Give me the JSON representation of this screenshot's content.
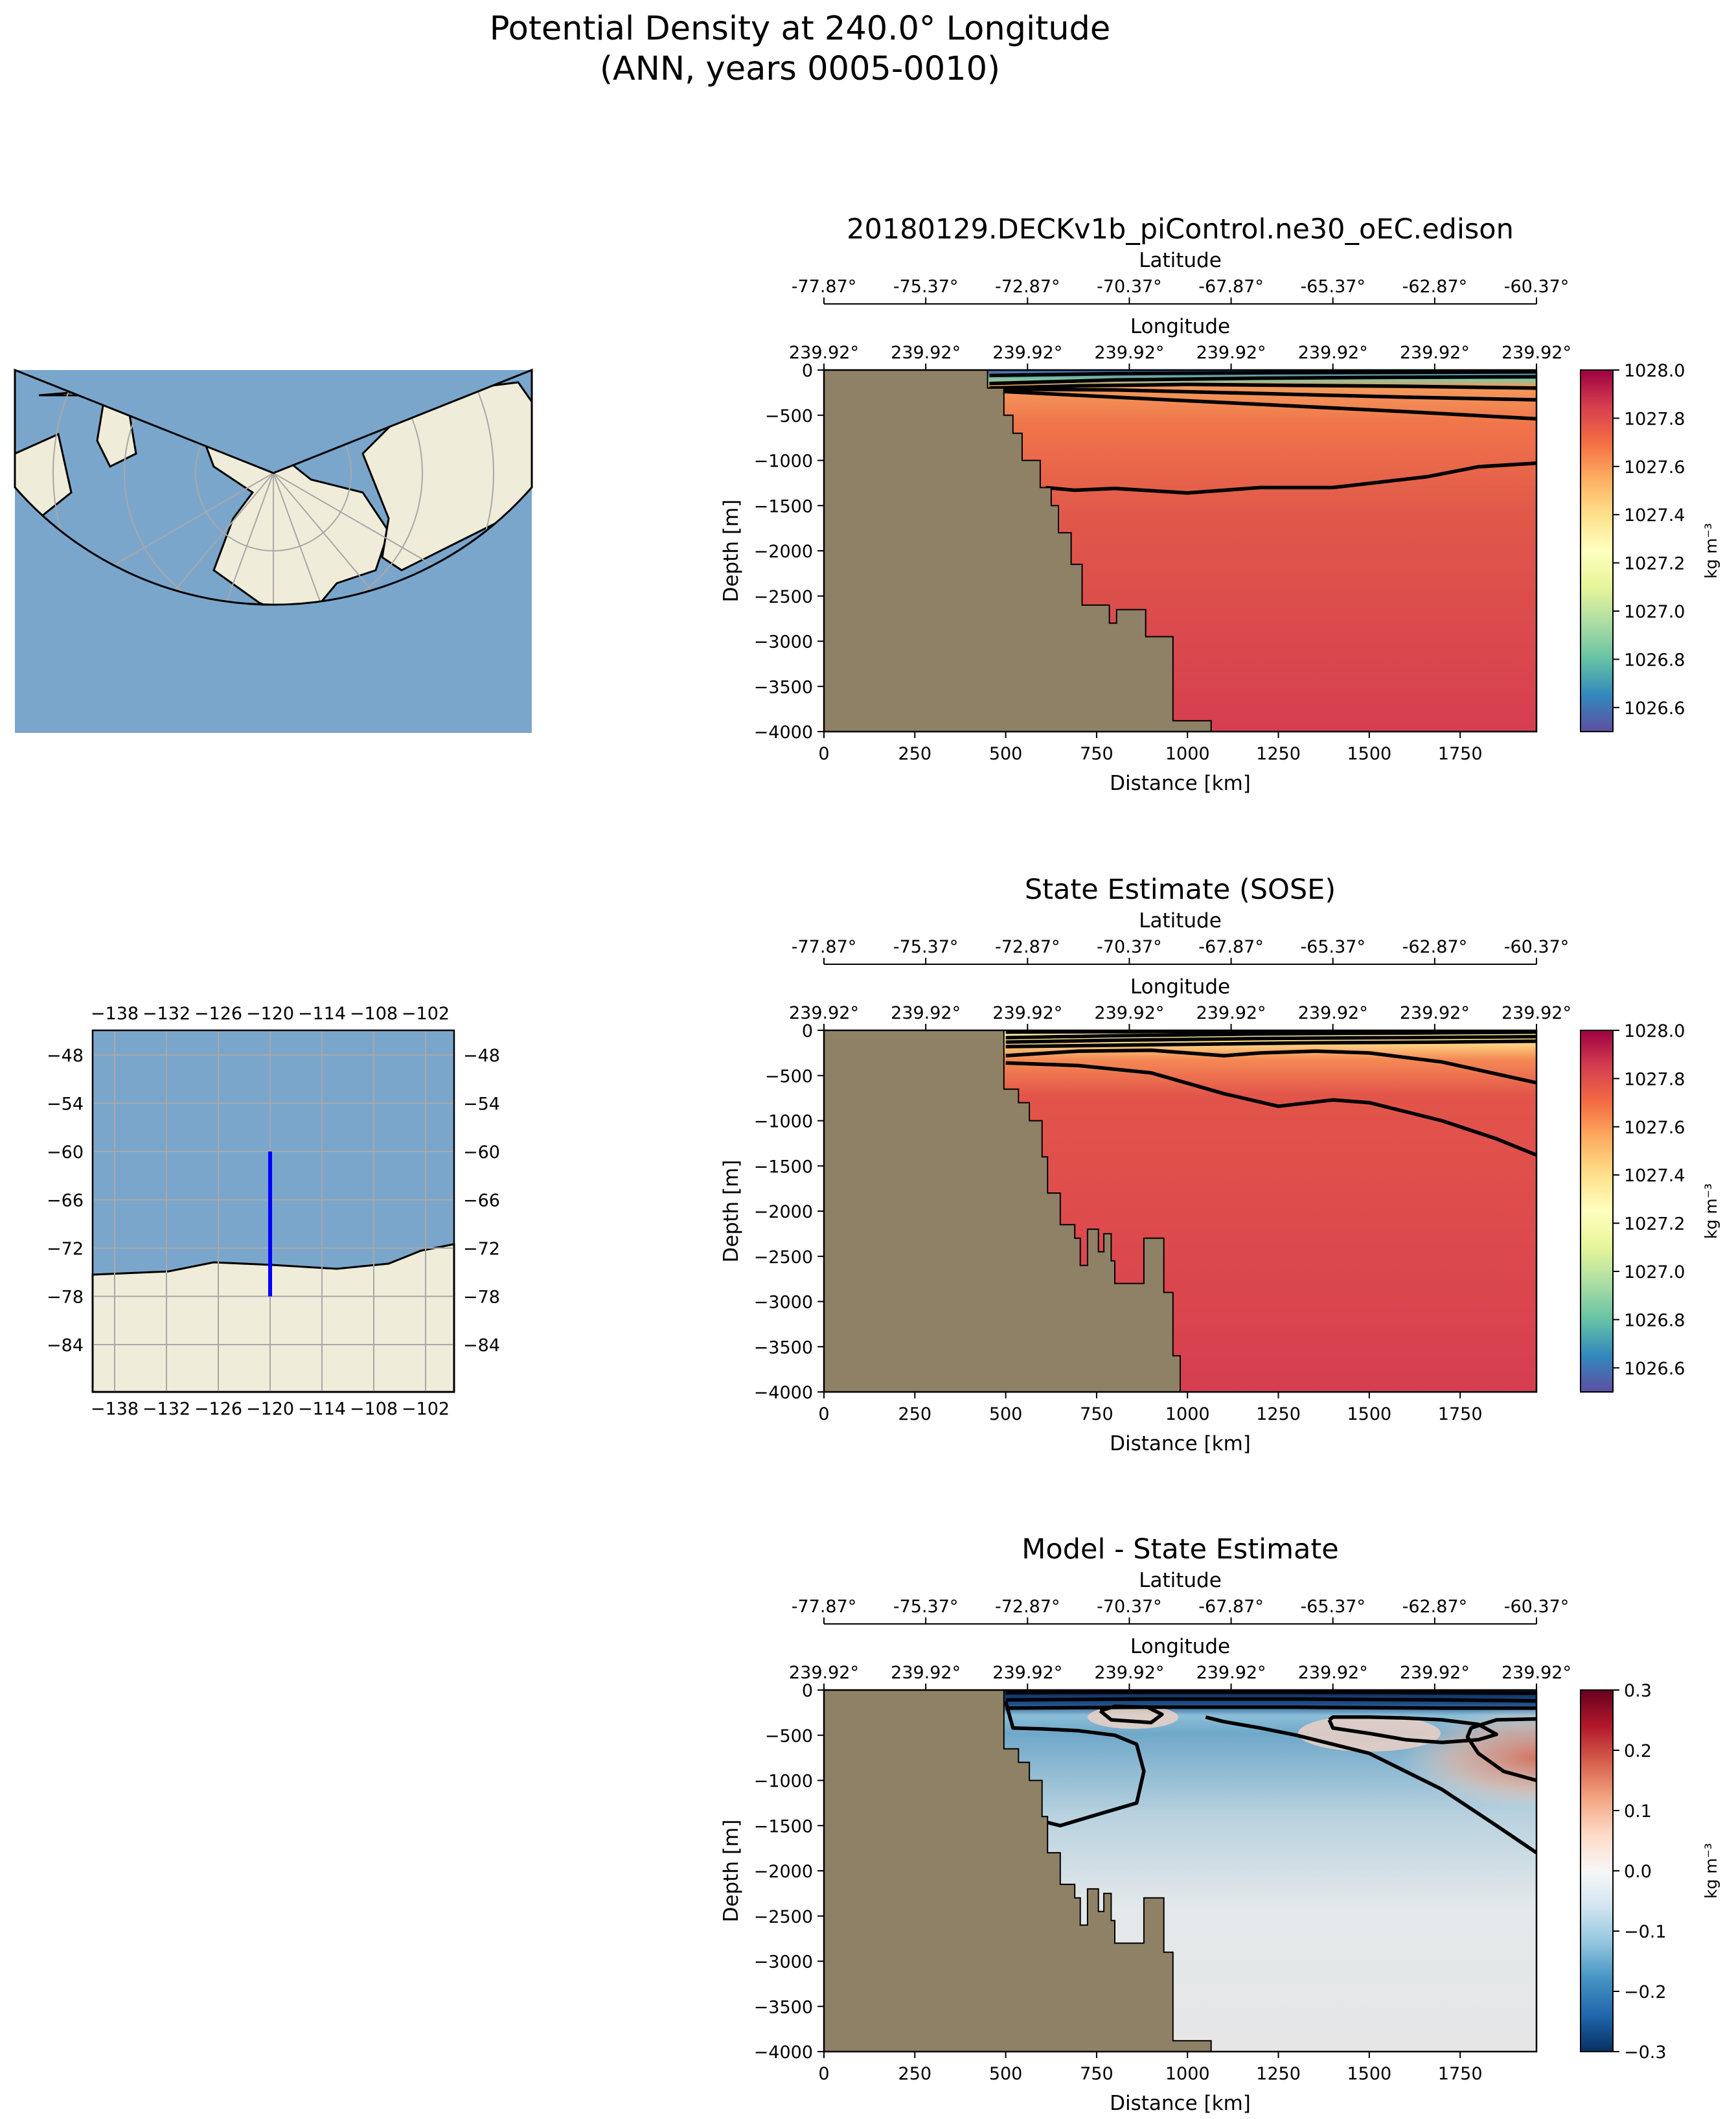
{
  "figure": {
    "title_line1": "Potential Density at 240.0° Longitude",
    "title_line2": "(ANN, years 0005-0010)"
  },
  "colors": {
    "land": "#8f8166",
    "ocean_blue": "#7aa6cc",
    "map_land": "#efedd9",
    "transect": "#0000ff"
  },
  "chart_data": [
    {
      "type": "heatmap",
      "title": "20180129.DECKv1b_piControl.ne30_oEC.edison",
      "xlabel": "Distance [km]",
      "ylabel": "Depth [m]",
      "x_ticks": [
        0,
        250,
        500,
        750,
        1000,
        1250,
        1500,
        1750
      ],
      "y_ticks": [
        0,
        -500,
        -1000,
        -1500,
        -2000,
        -2500,
        -3000,
        -3500,
        -4000
      ],
      "xlim": [
        0,
        1960
      ],
      "ylim": [
        -4000,
        0
      ],
      "top_axis1_label": "Latitude",
      "top_axis1_ticks": [
        "-77.87°",
        "-75.37°",
        "-72.87°",
        "-70.37°",
        "-67.87°",
        "-65.37°",
        "-62.87°",
        "-60.37°"
      ],
      "top_axis2_label": "Longitude",
      "top_axis2_ticks": [
        "239.92°",
        "239.92°",
        "239.92°",
        "239.92°",
        "239.92°",
        "239.92°",
        "239.92°",
        "239.92°"
      ],
      "colorbar_label": "kg m⁻³",
      "colorbar_ticks": [
        "1026.6",
        "1026.8",
        "1027.0",
        "1027.2",
        "1027.4",
        "1027.6",
        "1027.8",
        "1028.0"
      ],
      "colorbar_range": [
        1026.5,
        1028.0
      ],
      "colormap": "Spectral_r",
      "land_boundary": [
        [
          0,
          -4000
        ],
        [
          0,
          0
        ],
        [
          450,
          0
        ],
        [
          450,
          -200
        ],
        [
          495,
          -200
        ],
        [
          495,
          -500
        ],
        [
          520,
          -500
        ],
        [
          520,
          -700
        ],
        [
          545,
          -700
        ],
        [
          545,
          -1000
        ],
        [
          595,
          -1000
        ],
        [
          595,
          -1300
        ],
        [
          625,
          -1300
        ],
        [
          625,
          -1500
        ],
        [
          645,
          -1500
        ],
        [
          645,
          -1800
        ],
        [
          680,
          -1800
        ],
        [
          680,
          -2150
        ],
        [
          710,
          -2150
        ],
        [
          710,
          -2600
        ],
        [
          785,
          -2600
        ],
        [
          785,
          -2800
        ],
        [
          805,
          -2800
        ],
        [
          805,
          -2650
        ],
        [
          885,
          -2650
        ],
        [
          885,
          -2950
        ],
        [
          960,
          -2950
        ],
        [
          960,
          -3880
        ],
        [
          1065,
          -3880
        ],
        [
          1065,
          -4000
        ]
      ],
      "contours": [
        {
          "x": [
            455,
            800,
            1200,
            1600,
            1960
          ],
          "y": [
            -60,
            -40,
            -30,
            -25,
            -20
          ]
        },
        {
          "x": [
            455,
            800,
            1200,
            1600,
            1960
          ],
          "y": [
            -150,
            -110,
            -90,
            -80,
            -75
          ]
        },
        {
          "x": [
            455,
            700,
            1000,
            1300,
            1600,
            1960
          ],
          "y": [
            -200,
            -175,
            -160,
            -170,
            -180,
            -200
          ]
        },
        {
          "x": [
            455,
            800,
            1200,
            1600,
            1960
          ],
          "y": [
            -210,
            -220,
            -260,
            -300,
            -330
          ]
        },
        {
          "x": [
            455,
            800,
            1200,
            1600,
            1960
          ],
          "y": [
            -230,
            -300,
            -380,
            -460,
            -540
          ]
        },
        {
          "x": [
            610,
            690,
            800,
            1000,
            1200,
            1400,
            1660,
            1800,
            1960
          ],
          "y": [
            -1300,
            -1330,
            -1310,
            -1360,
            -1300,
            -1300,
            -1180,
            -1070,
            -1030
          ]
        }
      ]
    },
    {
      "type": "heatmap",
      "title": "State Estimate (SOSE)",
      "xlabel": "Distance [km]",
      "ylabel": "Depth [m]",
      "x_ticks": [
        0,
        250,
        500,
        750,
        1000,
        1250,
        1500,
        1750
      ],
      "y_ticks": [
        0,
        -500,
        -1000,
        -1500,
        -2000,
        -2500,
        -3000,
        -3500,
        -4000
      ],
      "xlim": [
        0,
        1960
      ],
      "ylim": [
        -4000,
        0
      ],
      "top_axis1_label": "Latitude",
      "top_axis1_ticks": [
        "-77.87°",
        "-75.37°",
        "-72.87°",
        "-70.37°",
        "-67.87°",
        "-65.37°",
        "-62.87°",
        "-60.37°"
      ],
      "top_axis2_label": "Longitude",
      "top_axis2_ticks": [
        "239.92°",
        "239.92°",
        "239.92°",
        "239.92°",
        "239.92°",
        "239.92°",
        "239.92°",
        "239.92°"
      ],
      "colorbar_label": "kg m⁻³",
      "colorbar_ticks": [
        "1026.6",
        "1026.8",
        "1027.0",
        "1027.2",
        "1027.4",
        "1027.6",
        "1027.8",
        "1028.0"
      ],
      "colorbar_range": [
        1026.5,
        1028.0
      ],
      "colormap": "Spectral_r",
      "land_boundary": [
        [
          0,
          -4000
        ],
        [
          0,
          0
        ],
        [
          495,
          0
        ],
        [
          495,
          -650
        ],
        [
          535,
          -650
        ],
        [
          535,
          -800
        ],
        [
          565,
          -800
        ],
        [
          565,
          -1000
        ],
        [
          600,
          -1000
        ],
        [
          600,
          -1400
        ],
        [
          615,
          -1400
        ],
        [
          615,
          -1800
        ],
        [
          650,
          -1800
        ],
        [
          650,
          -2150
        ],
        [
          690,
          -2150
        ],
        [
          690,
          -2300
        ],
        [
          705,
          -2300
        ],
        [
          705,
          -2600
        ],
        [
          725,
          -2600
        ],
        [
          725,
          -2200
        ],
        [
          755,
          -2200
        ],
        [
          755,
          -2450
        ],
        [
          770,
          -2450
        ],
        [
          770,
          -2250
        ],
        [
          790,
          -2250
        ],
        [
          790,
          -2550
        ],
        [
          800,
          -2550
        ],
        [
          800,
          -2800
        ],
        [
          880,
          -2800
        ],
        [
          880,
          -2300
        ],
        [
          935,
          -2300
        ],
        [
          935,
          -2900
        ],
        [
          960,
          -2900
        ],
        [
          960,
          -3600
        ],
        [
          980,
          -3600
        ],
        [
          980,
          -4000
        ]
      ],
      "contours": [
        {
          "x": [
            500,
            800,
            1200,
            1600,
            1960
          ],
          "y": [
            -20,
            -15,
            -10,
            -5,
            -5
          ]
        },
        {
          "x": [
            500,
            800,
            1200,
            1600,
            1960
          ],
          "y": [
            -80,
            -60,
            -40,
            -30,
            -20
          ]
        },
        {
          "x": [
            500,
            800,
            1200,
            1600,
            1960
          ],
          "y": [
            -130,
            -110,
            -90,
            -80,
            -70
          ]
        },
        {
          "x": [
            500,
            900,
            1300,
            1700,
            1960
          ],
          "y": [
            -180,
            -160,
            -140,
            -130,
            -120
          ]
        },
        {
          "x": [
            500,
            700,
            900,
            1100,
            1200,
            1350,
            1500,
            1700,
            1960
          ],
          "y": [
            -280,
            -230,
            -220,
            -280,
            -250,
            -230,
            -250,
            -350,
            -580
          ]
        },
        {
          "x": [
            500,
            700,
            900,
            1100,
            1250,
            1400,
            1500,
            1700,
            1850,
            1960
          ],
          "y": [
            -360,
            -390,
            -470,
            -700,
            -840,
            -770,
            -800,
            -1000,
            -1200,
            -1380
          ]
        }
      ]
    },
    {
      "type": "heatmap",
      "title": "Model - State Estimate",
      "xlabel": "Distance [km]",
      "ylabel": "Depth [m]",
      "x_ticks": [
        0,
        250,
        500,
        750,
        1000,
        1250,
        1500,
        1750
      ],
      "y_ticks": [
        0,
        -500,
        -1000,
        -1500,
        -2000,
        -2500,
        -3000,
        -3500,
        -4000
      ],
      "xlim": [
        0,
        1960
      ],
      "ylim": [
        -4000,
        0
      ],
      "top_axis1_label": "Latitude",
      "top_axis1_ticks": [
        "-77.87°",
        "-75.37°",
        "-72.87°",
        "-70.37°",
        "-67.87°",
        "-65.37°",
        "-62.87°",
        "-60.37°"
      ],
      "top_axis2_label": "Longitude",
      "top_axis2_ticks": [
        "239.92°",
        "239.92°",
        "239.92°",
        "239.92°",
        "239.92°",
        "239.92°",
        "239.92°",
        "239.92°"
      ],
      "colorbar_label": "kg m⁻³",
      "colorbar_ticks": [
        "−0.3",
        "−0.2",
        "−0.1",
        "0.0",
        "0.1",
        "0.2",
        "0.3"
      ],
      "colorbar_range": [
        -0.3,
        0.3
      ],
      "colormap": "RdBu_r",
      "land_boundary": [
        [
          0,
          -4000
        ],
        [
          0,
          0
        ],
        [
          495,
          0
        ],
        [
          495,
          -650
        ],
        [
          535,
          -650
        ],
        [
          535,
          -800
        ],
        [
          565,
          -800
        ],
        [
          565,
          -1000
        ],
        [
          600,
          -1000
        ],
        [
          600,
          -1400
        ],
        [
          615,
          -1400
        ],
        [
          615,
          -1800
        ],
        [
          650,
          -1800
        ],
        [
          650,
          -2150
        ],
        [
          690,
          -2150
        ],
        [
          690,
          -2300
        ],
        [
          705,
          -2300
        ],
        [
          705,
          -2600
        ],
        [
          725,
          -2600
        ],
        [
          725,
          -2200
        ],
        [
          755,
          -2200
        ],
        [
          755,
          -2450
        ],
        [
          770,
          -2450
        ],
        [
          770,
          -2250
        ],
        [
          790,
          -2250
        ],
        [
          790,
          -2550
        ],
        [
          800,
          -2550
        ],
        [
          800,
          -2800
        ],
        [
          880,
          -2800
        ],
        [
          880,
          -2300
        ],
        [
          935,
          -2300
        ],
        [
          935,
          -2900
        ],
        [
          960,
          -2900
        ],
        [
          960,
          -3880
        ],
        [
          1065,
          -3880
        ],
        [
          1065,
          -4000
        ]
      ],
      "contours": [
        {
          "x": [
            500,
            900,
            1300,
            1700,
            1960
          ],
          "y": [
            -30,
            -25,
            -25,
            -30,
            -35
          ]
        },
        {
          "x": [
            500,
            900,
            1300,
            1700,
            1960
          ],
          "y": [
            -110,
            -100,
            -100,
            -110,
            -120
          ]
        },
        {
          "x": [
            500,
            900,
            1300,
            1700,
            1960
          ],
          "y": [
            -200,
            -190,
            -190,
            -200,
            -200
          ]
        },
        {
          "x": [
            500,
            520,
            600,
            700,
            800,
            860,
            880,
            860,
            750,
            650,
            600,
            560,
            520,
            500
          ],
          "y": [
            -130,
            -420,
            -430,
            -450,
            -500,
            -600,
            -900,
            -1250,
            -1380,
            -1500,
            -1450,
            -1250,
            -900,
            -700
          ]
        },
        {
          "x": [
            760,
            790,
            900,
            930,
            890,
            800,
            760
          ],
          "y": [
            -230,
            -330,
            -360,
            -270,
            -190,
            -180,
            -230
          ]
        },
        {
          "x": [
            1390,
            1400,
            1500,
            1600,
            1700,
            1800,
            1850,
            1800,
            1700,
            1600,
            1500,
            1400,
            1390
          ],
          "y": [
            -330,
            -420,
            -480,
            -550,
            -580,
            -550,
            -490,
            -380,
            -330,
            -310,
            -300,
            -300,
            -330
          ]
        },
        {
          "x": [
            1960,
            1850,
            1780,
            1770,
            1800,
            1870,
            1960
          ],
          "y": [
            -320,
            -330,
            -420,
            -520,
            -700,
            -900,
            -1000
          ]
        },
        {
          "x": [
            1960,
            1850,
            1700,
            1500,
            1300,
            1200,
            1100,
            1050
          ],
          "y": [
            -1800,
            -1500,
            -1100,
            -700,
            -500,
            -420,
            -350,
            -300
          ]
        }
      ]
    }
  ],
  "maps": {
    "global_map": {
      "type": "lambert-conformal",
      "features": [
        "land",
        "ocean",
        "coastlines",
        "gridlines",
        "transect"
      ]
    },
    "inset_map": {
      "x_ticks": [
        "−138",
        "−132",
        "−126",
        "−120",
        "−114",
        "−108",
        "−102"
      ],
      "y_ticks": [
        "−48",
        "−54",
        "−60",
        "−66",
        "−72",
        "−78",
        "−84"
      ],
      "transect_lon": -120,
      "transect_lat": [
        -60,
        -78
      ]
    }
  }
}
